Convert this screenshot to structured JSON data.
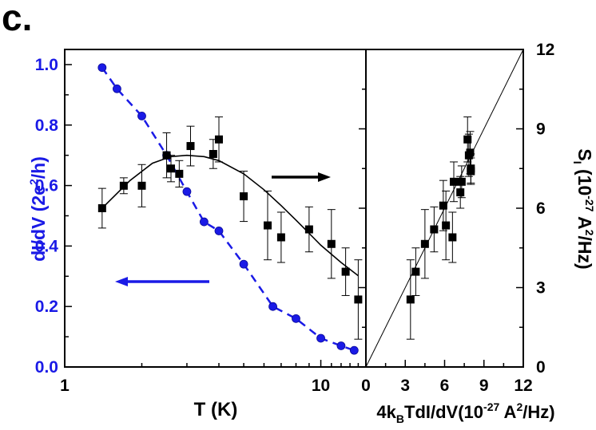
{
  "panel_label": "c.",
  "colors": {
    "blue": "#1a1ae6",
    "black": "#000000"
  },
  "chart_data": [
    {
      "type": "scatter",
      "x_scale": "log",
      "xlim": [
        1,
        15
      ],
      "x_ticks": [
        {
          "v": 1,
          "label": "1"
        },
        {
          "v": 10,
          "label": "10"
        }
      ],
      "xlabel": "T (K)",
      "ylabel_left": {
        "main": "dI/dV (2e",
        "sup": "2",
        "tail": "/h)"
      },
      "ylim_left": [
        0,
        1.05
      ],
      "y_ticks_left": [
        "0.0",
        "0.2",
        "0.4",
        "0.6",
        "0.8",
        "1.0"
      ],
      "ylim_right": [
        0,
        12
      ],
      "y_ticks_right": [
        "0",
        "3",
        "6",
        "9",
        "12"
      ],
      "series": [
        {
          "axis": "left",
          "color": "#1a1ae6",
          "marker": "circle",
          "line": "dashed",
          "x": [
            1.4,
            1.6,
            2.0,
            2.5,
            3.0,
            3.5,
            4.0,
            5.0,
            6.5,
            8.0,
            10.0,
            12.0
          ],
          "y": [
            0.99,
            0.92,
            0.83,
            0.7,
            0.58,
            0.48,
            0.45,
            0.34,
            0.2,
            0.16,
            0.095,
            0.07
          ],
          "x_extra": [
            13.5
          ],
          "y_extra": [
            0.055
          ]
        },
        {
          "axis": "right",
          "color": "#000000",
          "marker": "square",
          "line": "none",
          "x": [
            1.4,
            1.7,
            2.0,
            2.5,
            2.6,
            2.8,
            3.1,
            3.8,
            4.0,
            5.0,
            6.2,
            7.0,
            9.0,
            11.0,
            12.5,
            14.0
          ],
          "y": [
            6.0,
            6.85,
            6.85,
            8.0,
            7.5,
            7.3,
            8.35,
            8.05,
            8.6,
            6.45,
            5.35,
            4.9,
            5.2,
            4.65,
            3.6,
            2.55
          ],
          "err": [
            0.75,
            0.3,
            0.8,
            0.85,
            0.5,
            0.5,
            0.75,
            0.55,
            0.85,
            0.95,
            1.3,
            0.95,
            0.85,
            1.3,
            0.9,
            1.5
          ]
        }
      ],
      "fit_curve": {
        "axis": "right",
        "color": "#000000",
        "x": [
          1.4,
          1.8,
          2.2,
          2.6,
          3.0,
          3.5,
          4.0,
          5.0,
          6.0,
          7.0,
          8.0,
          9.0,
          10.0,
          12.0,
          14.0
        ],
        "y": [
          6.0,
          7.05,
          7.7,
          7.95,
          8.0,
          7.95,
          7.8,
          7.3,
          6.7,
          6.1,
          5.55,
          5.05,
          4.6,
          3.95,
          3.45
        ]
      },
      "annotations": [
        {
          "type": "arrow",
          "direction": "right",
          "color": "#000000",
          "meaning": "right axis"
        },
        {
          "type": "arrow",
          "direction": "left",
          "color": "#1a1ae6",
          "meaning": "left axis"
        }
      ]
    },
    {
      "type": "scatter",
      "xlim": [
        0,
        12
      ],
      "x_ticks": [
        "0",
        "3",
        "6",
        "9",
        "12"
      ],
      "xlabel": {
        "pre": "4k",
        "sub": "B",
        "mid": "TdI/dV(10",
        "sup1": "-27",
        "mid2": " A",
        "sup2": "2",
        "tail": "/Hz)"
      },
      "ylim": [
        0,
        12
      ],
      "y_ticks": [
        "0",
        "3",
        "6",
        "9",
        "12"
      ],
      "ylabel": {
        "pre": "S",
        "sub": "I",
        "mid": " (10",
        "sup1": "-27",
        "mid2": " A",
        "sup2": "2",
        "tail": "/Hz)"
      },
      "line": {
        "x": [
          0,
          12
        ],
        "y": [
          0,
          12
        ]
      },
      "points": {
        "x": [
          3.4,
          3.8,
          4.5,
          5.2,
          5.9,
          6.1,
          6.6,
          6.7,
          7.2,
          7.3,
          7.75,
          7.85,
          7.95,
          8.0,
          8.0
        ],
        "y": [
          2.55,
          3.6,
          4.65,
          5.2,
          6.1,
          5.35,
          4.9,
          7.0,
          6.6,
          7.0,
          8.6,
          8.0,
          8.1,
          7.4,
          7.5
        ],
        "err": [
          1.5,
          0.9,
          1.3,
          0.85,
          0.95,
          1.3,
          0.95,
          0.75,
          0.6,
          0.6,
          0.85,
          0.8,
          0.8,
          0.5,
          0.55
        ]
      }
    }
  ]
}
